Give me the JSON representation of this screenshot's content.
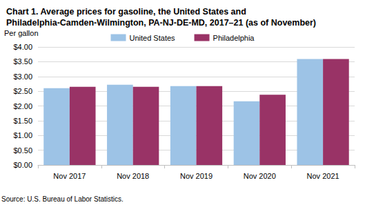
{
  "chart_data": {
    "type": "bar",
    "title": "Chart 1. Average prices for gasoline, the United States and Philadelphia-Camden-Wilmington, PA-NJ-DE-MD, 2017–21 (as of November)",
    "y_label": "Per gallon",
    "source": "Source: U.S. Bureau of Labor Statistics.",
    "categories": [
      "Nov 2017",
      "Nov 2018",
      "Nov 2019",
      "Nov 2020",
      "Nov 2021"
    ],
    "series": [
      {
        "name": "United States",
        "color": "#9dc3e6",
        "values": [
          2.6,
          2.72,
          2.67,
          2.16,
          3.59
        ]
      },
      {
        "name": "Philadelphia",
        "color": "#993366",
        "values": [
          2.65,
          2.65,
          2.67,
          2.38,
          3.59
        ]
      }
    ],
    "ylim": [
      0,
      4
    ],
    "yticks": [
      {
        "value": 0,
        "label": "$0.00"
      },
      {
        "value": 0.5,
        "label": "$0.50"
      },
      {
        "value": 1,
        "label": "$1.00"
      },
      {
        "value": 1.5,
        "label": "$1.50"
      },
      {
        "value": 2,
        "label": "$2.00"
      },
      {
        "value": 2.5,
        "label": "$2.50"
      },
      {
        "value": 3,
        "label": "$3.00"
      },
      {
        "value": 3.5,
        "label": "$3.50"
      },
      {
        "value": 4,
        "label": "$4.00"
      }
    ],
    "grid": true,
    "legend": "top"
  }
}
